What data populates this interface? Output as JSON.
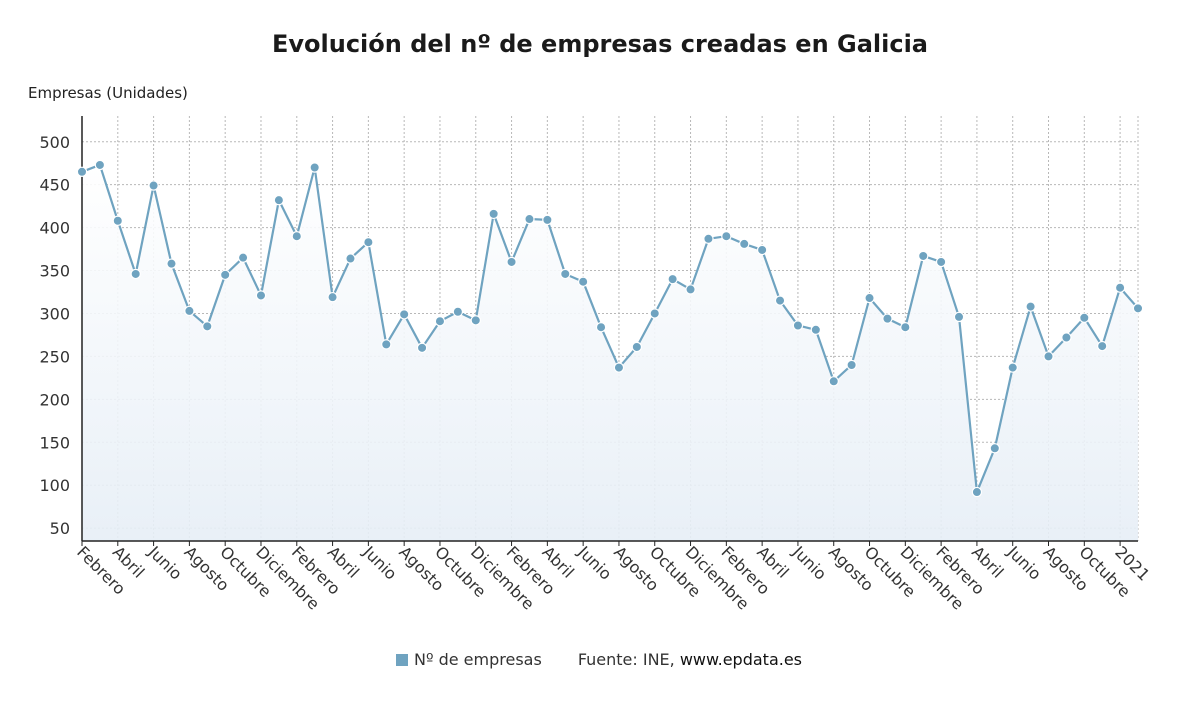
{
  "chart_data": {
    "type": "line",
    "title": "Evolución del nº de empresas creadas en Galicia",
    "ylabel": "Empresas (Unidades)",
    "ylim": [
      35,
      530
    ],
    "yticks": [
      50,
      100,
      150,
      200,
      250,
      300,
      350,
      400,
      450,
      500
    ],
    "grid": true,
    "x_tick_labels": [
      "Febrero",
      "Abril",
      "Junio",
      "Agosto",
      "Octubre",
      "Diciembre",
      "Febrero",
      "Abril",
      "Junio",
      "Agosto",
      "Octubre",
      "Diciembre",
      "Febrero",
      "Abril",
      "Junio",
      "Agosto",
      "Octubre",
      "Diciembre",
      "Febrero",
      "Abril",
      "Junio",
      "Agosto",
      "Octubre",
      "Diciembre",
      "Febrero",
      "Abril",
      "Junio",
      "Agosto",
      "Octubre",
      "2021"
    ],
    "series": [
      {
        "name": "Nº de empresas",
        "color": "#6fa3c0",
        "values": [
          465,
          473,
          408,
          346,
          449,
          358,
          303,
          285,
          345,
          365,
          321,
          432,
          390,
          470,
          319,
          364,
          383,
          264,
          299,
          260,
          291,
          302,
          292,
          416,
          360,
          410,
          409,
          346,
          337,
          284,
          237,
          261,
          300,
          340,
          328,
          387,
          390,
          381,
          374,
          315,
          286,
          281,
          221,
          240,
          318,
          294,
          284,
          367,
          360,
          296,
          92,
          143,
          237,
          308,
          250,
          272,
          295,
          262,
          330,
          306
        ]
      }
    ]
  },
  "legend": {
    "label": "Nº de empresas",
    "color": "#6fa3c0"
  },
  "source": {
    "prefix": "Fuente: INE, ",
    "site": "www.epdata.es"
  }
}
